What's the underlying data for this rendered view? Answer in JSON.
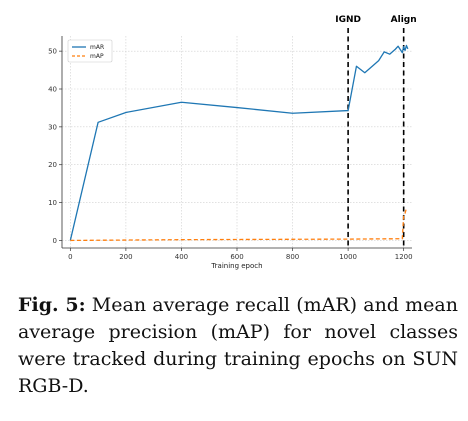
{
  "chart_data": {
    "type": "line",
    "title": "",
    "xlabel": "Training epoch",
    "ylabel": "",
    "xlim": [
      -30,
      1230
    ],
    "ylim": [
      -2,
      54
    ],
    "xticks": [
      0,
      200,
      400,
      600,
      800,
      1000,
      1200
    ],
    "yticks": [
      0,
      10,
      20,
      30,
      40,
      50
    ],
    "grid": true,
    "legend_position": "top-left",
    "series": [
      {
        "name": "mAR",
        "color": "#1f77b4",
        "style": "solid",
        "x": [
          0,
          100,
          200,
          400,
          600,
          800,
          1000,
          1030,
          1060,
          1090,
          1110,
          1130,
          1150,
          1170,
          1180,
          1195,
          1200,
          1205,
          1210,
          1215
        ],
        "y": [
          0,
          31.2,
          33.8,
          36.5,
          35.1,
          33.6,
          34.3,
          46.0,
          44.3,
          46.2,
          47.5,
          49.8,
          49.2,
          50.5,
          51.3,
          49.6,
          51.2,
          50.2,
          51.5,
          50.6
        ]
      },
      {
        "name": "mAP",
        "color": "#ff7f0e",
        "style": "dashed",
        "x": [
          0,
          100,
          200,
          400,
          600,
          800,
          1000,
          1100,
          1195,
          1200,
          1205,
          1210
        ],
        "y": [
          0,
          0.05,
          0.1,
          0.2,
          0.25,
          0.3,
          0.35,
          0.4,
          0.45,
          6.5,
          7.2,
          8.5
        ]
      }
    ],
    "vlines": [
      {
        "label": "IGND",
        "x": 1000
      },
      {
        "label": "Align",
        "x": 1200
      }
    ]
  },
  "caption": {
    "label": "Fig. 5:",
    "text": " Mean average recall (mAR) and mean average precision (mAP) for novel classes were tracked during training epochs on SUN RGB-D."
  }
}
